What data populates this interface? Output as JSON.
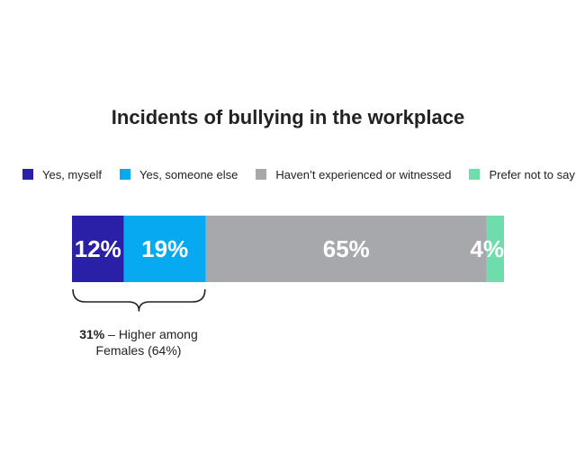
{
  "chart_data": {
    "type": "bar",
    "orientation": "horizontal-stacked",
    "title": "Incidents of bullying in the workplace",
    "legend_position": "top",
    "series": [
      {
        "name": "Yes, myself",
        "value": 12,
        "label": "12%",
        "color": "#2a20a8"
      },
      {
        "name": "Yes, someone else",
        "value": 19,
        "label": "19%",
        "color": "#07aaf0"
      },
      {
        "name": "Haven’t experienced or witnessed",
        "value": 65,
        "label": "65%",
        "color": "#a6a8ab"
      },
      {
        "name": "Prefer not to say",
        "value": 4,
        "label": "4%",
        "color": "#6fdcac"
      }
    ],
    "annotation": {
      "bold": "31%",
      "text": " – Higher among Females (64%)"
    }
  }
}
